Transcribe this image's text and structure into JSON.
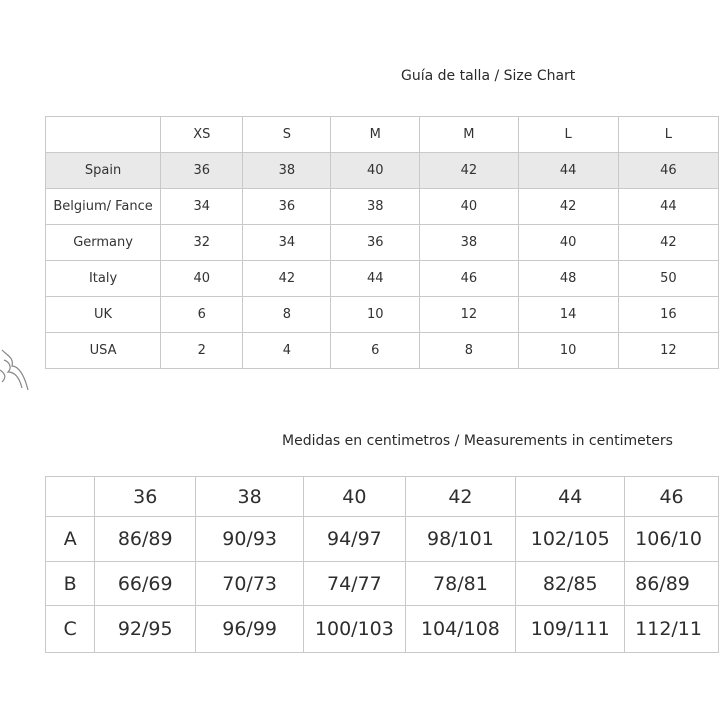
{
  "size_chart": {
    "title": "Guía de talla / Size Chart",
    "headers": [
      "",
      "XS",
      "S",
      "M",
      "M",
      "L",
      "L"
    ],
    "rows": [
      {
        "label": "Spain",
        "values": [
          "36",
          "38",
          "40",
          "42",
          "44",
          "46"
        ]
      },
      {
        "label": "Belgium/ Fance",
        "values": [
          "34",
          "36",
          "38",
          "40",
          "42",
          "44"
        ]
      },
      {
        "label": "Germany",
        "values": [
          "32",
          "34",
          "36",
          "38",
          "40",
          "42"
        ]
      },
      {
        "label": "Italy",
        "values": [
          "40",
          "42",
          "44",
          "46",
          "48",
          "50"
        ]
      },
      {
        "label": "UK",
        "values": [
          "6",
          "8",
          "10",
          "12",
          "14",
          "16"
        ]
      },
      {
        "label": "USA",
        "values": [
          "2",
          "4",
          "6",
          "8",
          "10",
          "12"
        ]
      }
    ]
  },
  "measurements": {
    "title": "Medidas en centimetros / Measurements in centimeters",
    "headers": [
      "",
      "36",
      "38",
      "40",
      "42",
      "44",
      "46"
    ],
    "rows": [
      {
        "label": "A",
        "values": [
          "86/89",
          "90/93",
          "94/97",
          "98/101",
          "102/105",
          "106/10"
        ]
      },
      {
        "label": "B",
        "values": [
          "66/69",
          "70/73",
          "74/77",
          "78/81",
          "82/85",
          "86/89"
        ]
      },
      {
        "label": "C",
        "values": [
          "92/95",
          "96/99",
          "100/103",
          "104/108",
          "109/111",
          "112/11"
        ]
      }
    ]
  }
}
